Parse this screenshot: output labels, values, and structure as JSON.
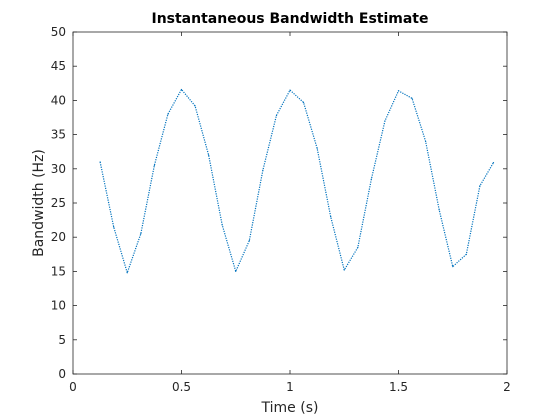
{
  "chart_data": {
    "type": "line",
    "title": "Instantaneous Bandwidth Estimate",
    "xlabel": "Time (s)",
    "ylabel": "Bandwidth (Hz)",
    "xlim": [
      0,
      2
    ],
    "ylim": [
      0,
      50
    ],
    "xticks": [
      0,
      0.5,
      1,
      1.5,
      2
    ],
    "xtick_labels": [
      "0",
      "0.5",
      "1",
      "1.5",
      "2"
    ],
    "yticks": [
      0,
      5,
      10,
      15,
      20,
      25,
      30,
      35,
      40,
      45,
      50
    ],
    "ytick_labels": [
      "0",
      "5",
      "10",
      "15",
      "20",
      "25",
      "30",
      "35",
      "40",
      "45",
      "50"
    ],
    "grid": false,
    "box": true,
    "series": [
      {
        "color": "#0072BD",
        "style": "dotted",
        "x": [
          0.125,
          0.1875,
          0.25,
          0.3125,
          0.375,
          0.4375,
          0.5,
          0.5625,
          0.625,
          0.6875,
          0.75,
          0.8125,
          0.875,
          0.9375,
          1.0,
          1.0625,
          1.125,
          1.1875,
          1.25,
          1.3125,
          1.375,
          1.4375,
          1.5,
          1.5625,
          1.625,
          1.6875,
          1.75,
          1.8125,
          1.875,
          1.9375
        ],
        "y": [
          31.0,
          21.5,
          14.8,
          20.5,
          30.5,
          38.0,
          41.6,
          39.2,
          32.0,
          21.8,
          15.0,
          19.5,
          29.8,
          37.8,
          41.5,
          39.7,
          33.0,
          23.0,
          15.2,
          18.5,
          28.5,
          37.0,
          41.4,
          40.3,
          34.0,
          24.0,
          15.7,
          17.5,
          27.5,
          30.9
        ]
      }
    ]
  }
}
